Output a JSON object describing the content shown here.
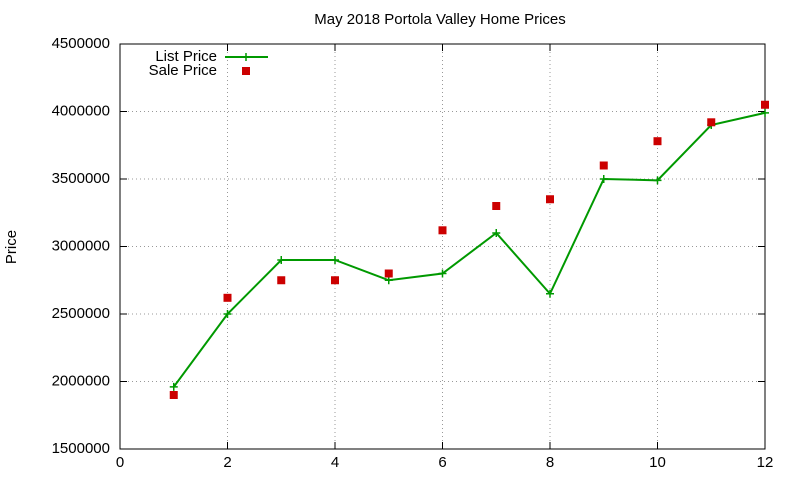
{
  "chart_data": {
    "type": "line",
    "title": "May 2018 Portola Valley Home Prices",
    "y_label": "Price",
    "x": [
      1,
      2,
      3,
      4,
      5,
      6,
      7,
      8,
      9,
      10,
      11,
      12
    ],
    "series": [
      {
        "name": "List Price",
        "color": "#009900",
        "style": "line",
        "values": [
          1960000,
          2500000,
          2900000,
          2900000,
          2750000,
          2800000,
          3100000,
          2650000,
          3500000,
          3490000,
          3900000,
          3990000
        ]
      },
      {
        "name": "Sale Price",
        "color": "#cc0000",
        "style": "points",
        "values": [
          1900000,
          2620000,
          2750000,
          2750000,
          2800000,
          3120000,
          3300000,
          3350000,
          3600000,
          3780000,
          3920000,
          4050000
        ]
      }
    ],
    "xlim": [
      0,
      12
    ],
    "xticks": [
      0,
      2,
      4,
      6,
      8,
      10,
      12
    ],
    "ylim": [
      1500000,
      4500000
    ],
    "yticks": [
      1500000,
      2000000,
      2500000,
      3000000,
      3500000,
      4000000,
      4500000
    ],
    "grid": true,
    "legend": "top-left"
  }
}
